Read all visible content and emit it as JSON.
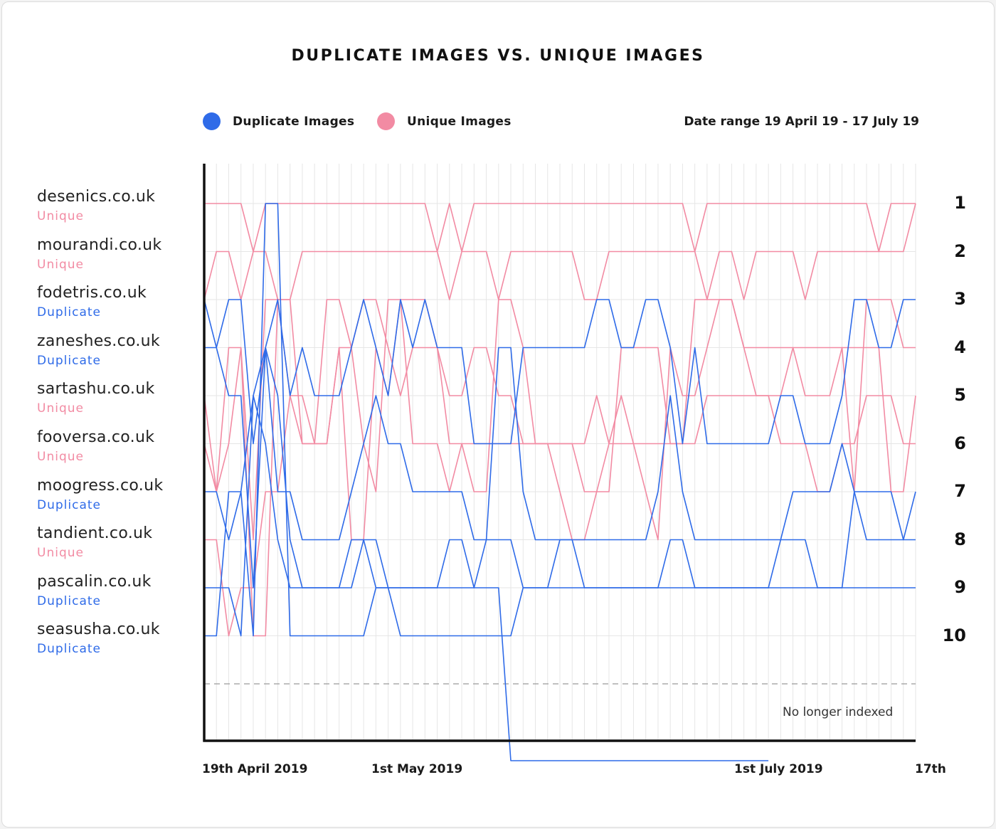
{
  "chart_data": {
    "type": "line",
    "title": "DUPLICATE IMAGES VS. UNIQUE IMAGES",
    "date_range_label": "Date range 19 April 19 - 17 July 19",
    "legend": [
      {
        "name": "Duplicate Images",
        "color": "#2f6be8"
      },
      {
        "name": "Unique Images",
        "color": "#f28ba3"
      }
    ],
    "colors": {
      "duplicate": "#2f6be8",
      "unique": "#f28ba3",
      "grid": "#e6e6e6",
      "axis": "#111111"
    },
    "x_ticks": [
      "19th April 2019",
      "1st May 2019",
      "1st July 2019",
      "17th"
    ],
    "y_ticks": [
      "1",
      "2",
      "3",
      "4",
      "5",
      "6",
      "7",
      "8",
      "9",
      "10"
    ],
    "y_axis": {
      "min_rank": 1,
      "max_rank": 10,
      "reversed": true
    },
    "no_longer_indexed_label": "No longer indexed",
    "grid": true,
    "days": 59,
    "series": [
      {
        "name": "desenics.co.uk",
        "type": "Unique",
        "ranks": [
          1,
          1,
          1,
          1,
          2,
          1,
          1,
          1,
          1,
          1,
          1,
          1,
          1,
          1,
          1,
          1,
          1,
          1,
          1,
          2,
          1,
          2,
          1,
          1,
          1,
          1,
          1,
          1,
          1,
          1,
          1,
          1,
          1,
          1,
          1,
          1,
          1,
          1,
          1,
          1,
          2,
          1,
          1,
          1,
          1,
          1,
          1,
          1,
          1,
          1,
          1,
          1,
          1,
          1,
          1,
          2,
          1,
          1,
          1
        ]
      },
      {
        "name": "mourandi.co.uk",
        "type": "Unique",
        "ranks": [
          3,
          2,
          2,
          3,
          2,
          2,
          3,
          3,
          2,
          2,
          2,
          2,
          2,
          2,
          2,
          2,
          2,
          2,
          2,
          2,
          3,
          2,
          2,
          2,
          3,
          2,
          2,
          2,
          2,
          2,
          2,
          3,
          3,
          2,
          2,
          2,
          2,
          2,
          2,
          2,
          2,
          3,
          2,
          2,
          3,
          2,
          2,
          2,
          2,
          3,
          2,
          2,
          2,
          2,
          2,
          2,
          2,
          2,
          1
        ]
      },
      {
        "name": "fodetris.co.uk",
        "type": "Duplicate",
        "ranks": [
          4,
          4,
          3,
          3,
          6,
          4,
          3,
          5,
          4,
          5,
          5,
          5,
          4,
          3,
          4,
          5,
          3,
          4,
          3,
          4,
          4,
          4,
          6,
          6,
          6,
          6,
          4,
          4,
          4,
          4,
          4,
          4,
          3,
          3,
          4,
          4,
          3,
          3,
          4,
          6,
          4,
          6,
          6,
          6,
          6,
          6,
          6,
          5,
          5,
          6,
          6,
          6,
          5,
          3,
          3,
          4,
          4,
          3,
          3
        ]
      },
      {
        "name": "zaneshes.co.uk",
        "type": "Duplicate",
        "ranks": [
          3,
          4,
          5,
          5,
          9,
          4,
          7,
          7,
          8,
          8,
          8,
          8,
          7,
          6,
          5,
          6,
          6,
          7,
          7,
          7,
          7,
          7,
          8,
          8,
          4,
          4,
          7,
          8,
          8,
          8,
          8,
          8,
          8,
          8,
          8,
          8,
          8,
          7,
          5,
          7,
          8,
          8,
          8,
          8,
          8,
          8,
          8,
          8,
          7,
          7,
          7,
          7,
          6,
          7,
          8,
          8,
          8,
          8,
          8
        ]
      },
      {
        "name": "sartashu.co.uk",
        "type": "Unique",
        "ranks": [
          5,
          7,
          4,
          4,
          8,
          3,
          3,
          5,
          5,
          6,
          6,
          4,
          4,
          3,
          3,
          4,
          5,
          4,
          4,
          4,
          5,
          5,
          4,
          4,
          5,
          5,
          6,
          6,
          6,
          6,
          6,
          6,
          5,
          6,
          5,
          6,
          7,
          8,
          4,
          5,
          5,
          4,
          3,
          3,
          4,
          5,
          5,
          6,
          6,
          6,
          7,
          7,
          6,
          6,
          5,
          5,
          5,
          6,
          6
        ]
      },
      {
        "name": "fooversa.co.uk",
        "type": "Unique",
        "ranks": [
          6,
          7,
          6,
          4,
          10,
          10,
          3,
          3,
          6,
          6,
          3,
          3,
          4,
          6,
          7,
          3,
          3,
          6,
          6,
          6,
          7,
          6,
          6,
          6,
          6,
          6,
          6,
          6,
          6,
          6,
          6,
          7,
          7,
          6,
          6,
          6,
          6,
          6,
          6,
          6,
          3,
          3,
          3,
          3,
          4,
          4,
          4,
          4,
          4,
          4,
          4,
          4,
          4,
          4,
          4,
          4,
          7,
          7,
          5
        ]
      },
      {
        "name": "moogress.co.uk",
        "type": "Duplicate",
        "ranks": [
          7,
          7,
          8,
          7,
          5,
          6,
          8,
          9,
          9,
          9,
          9,
          9,
          8,
          8,
          9,
          9,
          9,
          9,
          9,
          9,
          8,
          8,
          9,
          8,
          8,
          8,
          9,
          9,
          9,
          8,
          8,
          9,
          9,
          9,
          9,
          9,
          9,
          9,
          8,
          8,
          9,
          9,
          9,
          9,
          9,
          9,
          9,
          8,
          8,
          8,
          9,
          9,
          9,
          7,
          7,
          7,
          7,
          8,
          7
        ]
      },
      {
        "name": "tandient.co.uk",
        "type": "Unique",
        "ranks": [
          8,
          8,
          10,
          9,
          9,
          7,
          7,
          5,
          6,
          6,
          6,
          4,
          8,
          8,
          4,
          5,
          3,
          3,
          3,
          4,
          6,
          6,
          7,
          7,
          3,
          3,
          4,
          6,
          6,
          7,
          8,
          8,
          7,
          7,
          4,
          4,
          4,
          4,
          6,
          6,
          6,
          5,
          5,
          5,
          5,
          5,
          5,
          5,
          4,
          5,
          5,
          5,
          4,
          7,
          3,
          3,
          3,
          4,
          4
        ]
      },
      {
        "name": "pascalin.co.uk",
        "type": "Duplicate",
        "ranks": [
          9,
          9,
          9,
          10,
          5,
          4,
          5,
          8,
          9,
          9,
          9,
          9,
          9,
          8,
          8,
          9,
          9,
          9,
          9,
          9,
          9,
          9,
          9,
          9,
          9,
          12.6,
          12.6,
          12.6,
          12.6,
          12.6,
          12.6,
          12.6,
          12.6,
          12.6,
          12.6,
          12.6,
          12.6,
          12.6,
          12.6,
          12.6,
          12.6,
          12.6,
          12.6,
          12.6,
          12.6,
          12.6,
          12.6,
          null,
          null,
          null,
          null,
          null,
          null,
          null,
          null,
          null,
          null,
          null,
          null
        ]
      },
      {
        "name": "seasusha.co.uk",
        "type": "Duplicate",
        "ranks": [
          10,
          10,
          7,
          7,
          10,
          1,
          1,
          10,
          10,
          10,
          10,
          10,
          10,
          10,
          9,
          9,
          10,
          10,
          10,
          10,
          10,
          10,
          10,
          10,
          10,
          10,
          9,
          9,
          9,
          9,
          9,
          9,
          9,
          9,
          9,
          9,
          9,
          9,
          9,
          9,
          9,
          9,
          9,
          9,
          9,
          9,
          9,
          9,
          9,
          9,
          9,
          9,
          9,
          9,
          9,
          9,
          9,
          9,
          9
        ]
      }
    ]
  }
}
